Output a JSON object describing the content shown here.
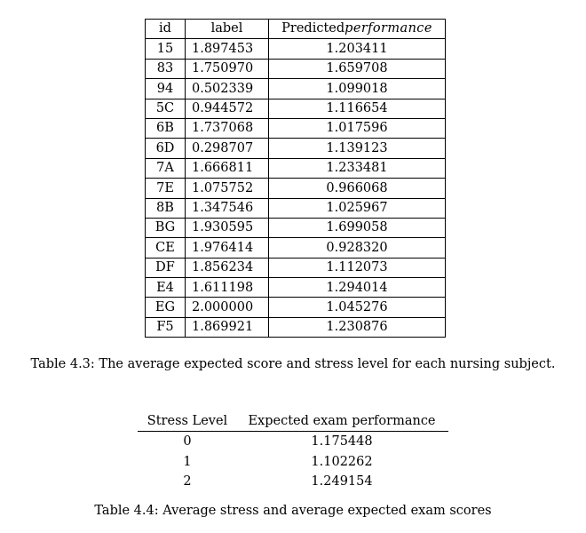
{
  "table_4_3": {
    "columns": {
      "id": "id",
      "label": "label",
      "predicted_prefix": "Predicted",
      "predicted_italic": "performance"
    },
    "rows": [
      {
        "id": "15",
        "label": "1.897453",
        "predicted": "1.203411"
      },
      {
        "id": "83",
        "label": "1.750970",
        "predicted": "1.659708"
      },
      {
        "id": "94",
        "label": "0.502339",
        "predicted": "1.099018"
      },
      {
        "id": "5C",
        "label": "0.944572",
        "predicted": "1.116654"
      },
      {
        "id": "6B",
        "label": "1.737068",
        "predicted": "1.017596"
      },
      {
        "id": "6D",
        "label": "0.298707",
        "predicted": "1.139123"
      },
      {
        "id": "7A",
        "label": "1.666811",
        "predicted": "1.233481"
      },
      {
        "id": "7E",
        "label": "1.075752",
        "predicted": "0.966068"
      },
      {
        "id": "8B",
        "label": "1.347546",
        "predicted": "1.025967"
      },
      {
        "id": "BG",
        "label": "1.930595",
        "predicted": "1.699058"
      },
      {
        "id": "CE",
        "label": "1.976414",
        "predicted": "0.928320"
      },
      {
        "id": "DF",
        "label": "1.856234",
        "predicted": "1.112073"
      },
      {
        "id": "E4",
        "label": "1.611198",
        "predicted": "1.294014"
      },
      {
        "id": "EG",
        "label": "2.000000",
        "predicted": "1.045276"
      },
      {
        "id": "F5",
        "label": "1.869921",
        "predicted": "1.230876"
      }
    ],
    "caption": "Table 4.3: The average expected score and stress level for each nursing subject."
  },
  "table_4_4": {
    "columns": {
      "stress_level": "Stress Level",
      "expected": "Expected exam performance"
    },
    "rows": [
      {
        "stress_level": "0",
        "expected": "1.175448"
      },
      {
        "stress_level": "1",
        "expected": "1.102262"
      },
      {
        "stress_level": "2",
        "expected": "1.249154"
      }
    ],
    "caption": "Table 4.4: Average stress and average expected exam scores"
  }
}
